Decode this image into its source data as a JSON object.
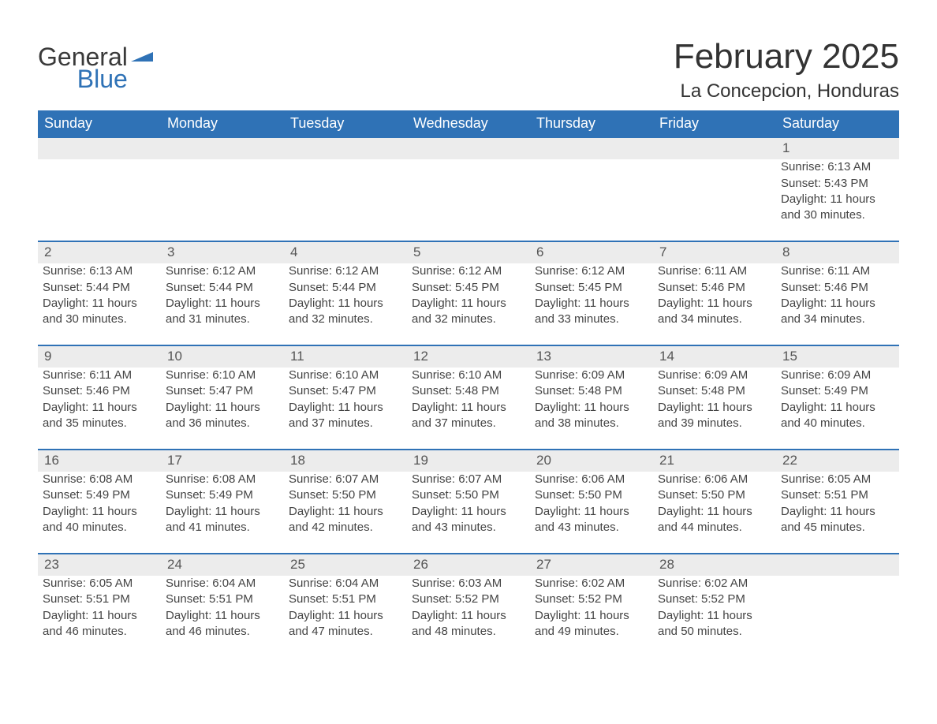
{
  "logo": {
    "word1": "General",
    "word2": "Blue",
    "brand_color": "#2f72b6"
  },
  "title": "February 2025",
  "location": "La Concepcion, Honduras",
  "colors": {
    "header_bg": "#2f72b6",
    "header_text": "#ffffff",
    "dayrow_bg": "#ececec",
    "dayrow_border": "#2f72b6",
    "body_text": "#444444",
    "page_bg": "#ffffff"
  },
  "fonts": {
    "title_size_pt": 33,
    "location_size_pt": 18,
    "header_cell_pt": 14,
    "body_pt": 11
  },
  "weekdays": [
    "Sunday",
    "Monday",
    "Tuesday",
    "Wednesday",
    "Thursday",
    "Friday",
    "Saturday"
  ],
  "weeks": [
    [
      null,
      null,
      null,
      null,
      null,
      null,
      {
        "n": "1",
        "sunrise": "Sunrise: 6:13 AM",
        "sunset": "Sunset: 5:43 PM",
        "day1": "Daylight: 11 hours",
        "day2": "and 30 minutes."
      }
    ],
    [
      {
        "n": "2",
        "sunrise": "Sunrise: 6:13 AM",
        "sunset": "Sunset: 5:44 PM",
        "day1": "Daylight: 11 hours",
        "day2": "and 30 minutes."
      },
      {
        "n": "3",
        "sunrise": "Sunrise: 6:12 AM",
        "sunset": "Sunset: 5:44 PM",
        "day1": "Daylight: 11 hours",
        "day2": "and 31 minutes."
      },
      {
        "n": "4",
        "sunrise": "Sunrise: 6:12 AM",
        "sunset": "Sunset: 5:44 PM",
        "day1": "Daylight: 11 hours",
        "day2": "and 32 minutes."
      },
      {
        "n": "5",
        "sunrise": "Sunrise: 6:12 AM",
        "sunset": "Sunset: 5:45 PM",
        "day1": "Daylight: 11 hours",
        "day2": "and 32 minutes."
      },
      {
        "n": "6",
        "sunrise": "Sunrise: 6:12 AM",
        "sunset": "Sunset: 5:45 PM",
        "day1": "Daylight: 11 hours",
        "day2": "and 33 minutes."
      },
      {
        "n": "7",
        "sunrise": "Sunrise: 6:11 AM",
        "sunset": "Sunset: 5:46 PM",
        "day1": "Daylight: 11 hours",
        "day2": "and 34 minutes."
      },
      {
        "n": "8",
        "sunrise": "Sunrise: 6:11 AM",
        "sunset": "Sunset: 5:46 PM",
        "day1": "Daylight: 11 hours",
        "day2": "and 34 minutes."
      }
    ],
    [
      {
        "n": "9",
        "sunrise": "Sunrise: 6:11 AM",
        "sunset": "Sunset: 5:46 PM",
        "day1": "Daylight: 11 hours",
        "day2": "and 35 minutes."
      },
      {
        "n": "10",
        "sunrise": "Sunrise: 6:10 AM",
        "sunset": "Sunset: 5:47 PM",
        "day1": "Daylight: 11 hours",
        "day2": "and 36 minutes."
      },
      {
        "n": "11",
        "sunrise": "Sunrise: 6:10 AM",
        "sunset": "Sunset: 5:47 PM",
        "day1": "Daylight: 11 hours",
        "day2": "and 37 minutes."
      },
      {
        "n": "12",
        "sunrise": "Sunrise: 6:10 AM",
        "sunset": "Sunset: 5:48 PM",
        "day1": "Daylight: 11 hours",
        "day2": "and 37 minutes."
      },
      {
        "n": "13",
        "sunrise": "Sunrise: 6:09 AM",
        "sunset": "Sunset: 5:48 PM",
        "day1": "Daylight: 11 hours",
        "day2": "and 38 minutes."
      },
      {
        "n": "14",
        "sunrise": "Sunrise: 6:09 AM",
        "sunset": "Sunset: 5:48 PM",
        "day1": "Daylight: 11 hours",
        "day2": "and 39 minutes."
      },
      {
        "n": "15",
        "sunrise": "Sunrise: 6:09 AM",
        "sunset": "Sunset: 5:49 PM",
        "day1": "Daylight: 11 hours",
        "day2": "and 40 minutes."
      }
    ],
    [
      {
        "n": "16",
        "sunrise": "Sunrise: 6:08 AM",
        "sunset": "Sunset: 5:49 PM",
        "day1": "Daylight: 11 hours",
        "day2": "and 40 minutes."
      },
      {
        "n": "17",
        "sunrise": "Sunrise: 6:08 AM",
        "sunset": "Sunset: 5:49 PM",
        "day1": "Daylight: 11 hours",
        "day2": "and 41 minutes."
      },
      {
        "n": "18",
        "sunrise": "Sunrise: 6:07 AM",
        "sunset": "Sunset: 5:50 PM",
        "day1": "Daylight: 11 hours",
        "day2": "and 42 minutes."
      },
      {
        "n": "19",
        "sunrise": "Sunrise: 6:07 AM",
        "sunset": "Sunset: 5:50 PM",
        "day1": "Daylight: 11 hours",
        "day2": "and 43 minutes."
      },
      {
        "n": "20",
        "sunrise": "Sunrise: 6:06 AM",
        "sunset": "Sunset: 5:50 PM",
        "day1": "Daylight: 11 hours",
        "day2": "and 43 minutes."
      },
      {
        "n": "21",
        "sunrise": "Sunrise: 6:06 AM",
        "sunset": "Sunset: 5:50 PM",
        "day1": "Daylight: 11 hours",
        "day2": "and 44 minutes."
      },
      {
        "n": "22",
        "sunrise": "Sunrise: 6:05 AM",
        "sunset": "Sunset: 5:51 PM",
        "day1": "Daylight: 11 hours",
        "day2": "and 45 minutes."
      }
    ],
    [
      {
        "n": "23",
        "sunrise": "Sunrise: 6:05 AM",
        "sunset": "Sunset: 5:51 PM",
        "day1": "Daylight: 11 hours",
        "day2": "and 46 minutes."
      },
      {
        "n": "24",
        "sunrise": "Sunrise: 6:04 AM",
        "sunset": "Sunset: 5:51 PM",
        "day1": "Daylight: 11 hours",
        "day2": "and 46 minutes."
      },
      {
        "n": "25",
        "sunrise": "Sunrise: 6:04 AM",
        "sunset": "Sunset: 5:51 PM",
        "day1": "Daylight: 11 hours",
        "day2": "and 47 minutes."
      },
      {
        "n": "26",
        "sunrise": "Sunrise: 6:03 AM",
        "sunset": "Sunset: 5:52 PM",
        "day1": "Daylight: 11 hours",
        "day2": "and 48 minutes."
      },
      {
        "n": "27",
        "sunrise": "Sunrise: 6:02 AM",
        "sunset": "Sunset: 5:52 PM",
        "day1": "Daylight: 11 hours",
        "day2": "and 49 minutes."
      },
      {
        "n": "28",
        "sunrise": "Sunrise: 6:02 AM",
        "sunset": "Sunset: 5:52 PM",
        "day1": "Daylight: 11 hours",
        "day2": "and 50 minutes."
      },
      null
    ]
  ]
}
